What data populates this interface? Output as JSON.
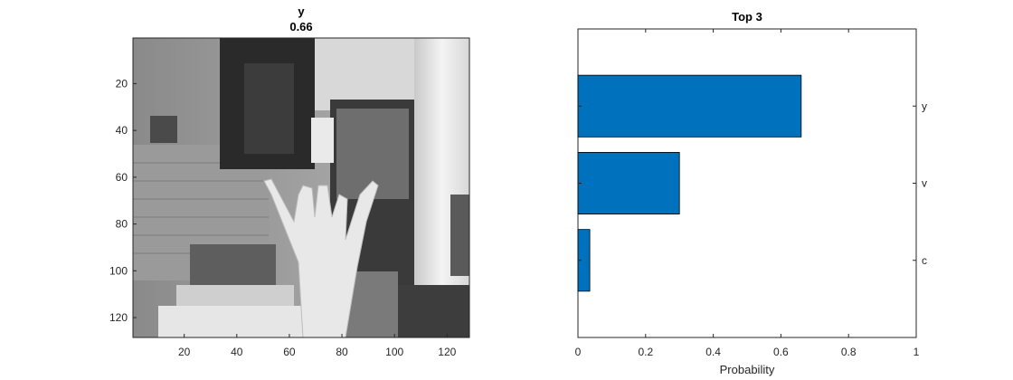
{
  "left_panel": {
    "title_line1": "y",
    "title_line2": "0.66",
    "image_description_placeholder": "",
    "x_ticks": [
      "20",
      "40",
      "60",
      "80",
      "100",
      "120"
    ],
    "y_ticks": [
      "20",
      "40",
      "60",
      "80",
      "100",
      "120"
    ]
  },
  "chart_data": {
    "type": "bar",
    "orientation": "horizontal",
    "title": "Top 3",
    "xlabel": "Probability",
    "ylabel": "",
    "categories": [
      "c",
      "v",
      "y"
    ],
    "values": [
      0.035,
      0.3,
      0.66
    ],
    "xlim": [
      0,
      1
    ],
    "xticks": [
      "0",
      "0.2",
      "0.4",
      "0.6",
      "0.8",
      "1"
    ],
    "bar_color": "#0072BD",
    "grid": false,
    "category_axis": "right"
  }
}
